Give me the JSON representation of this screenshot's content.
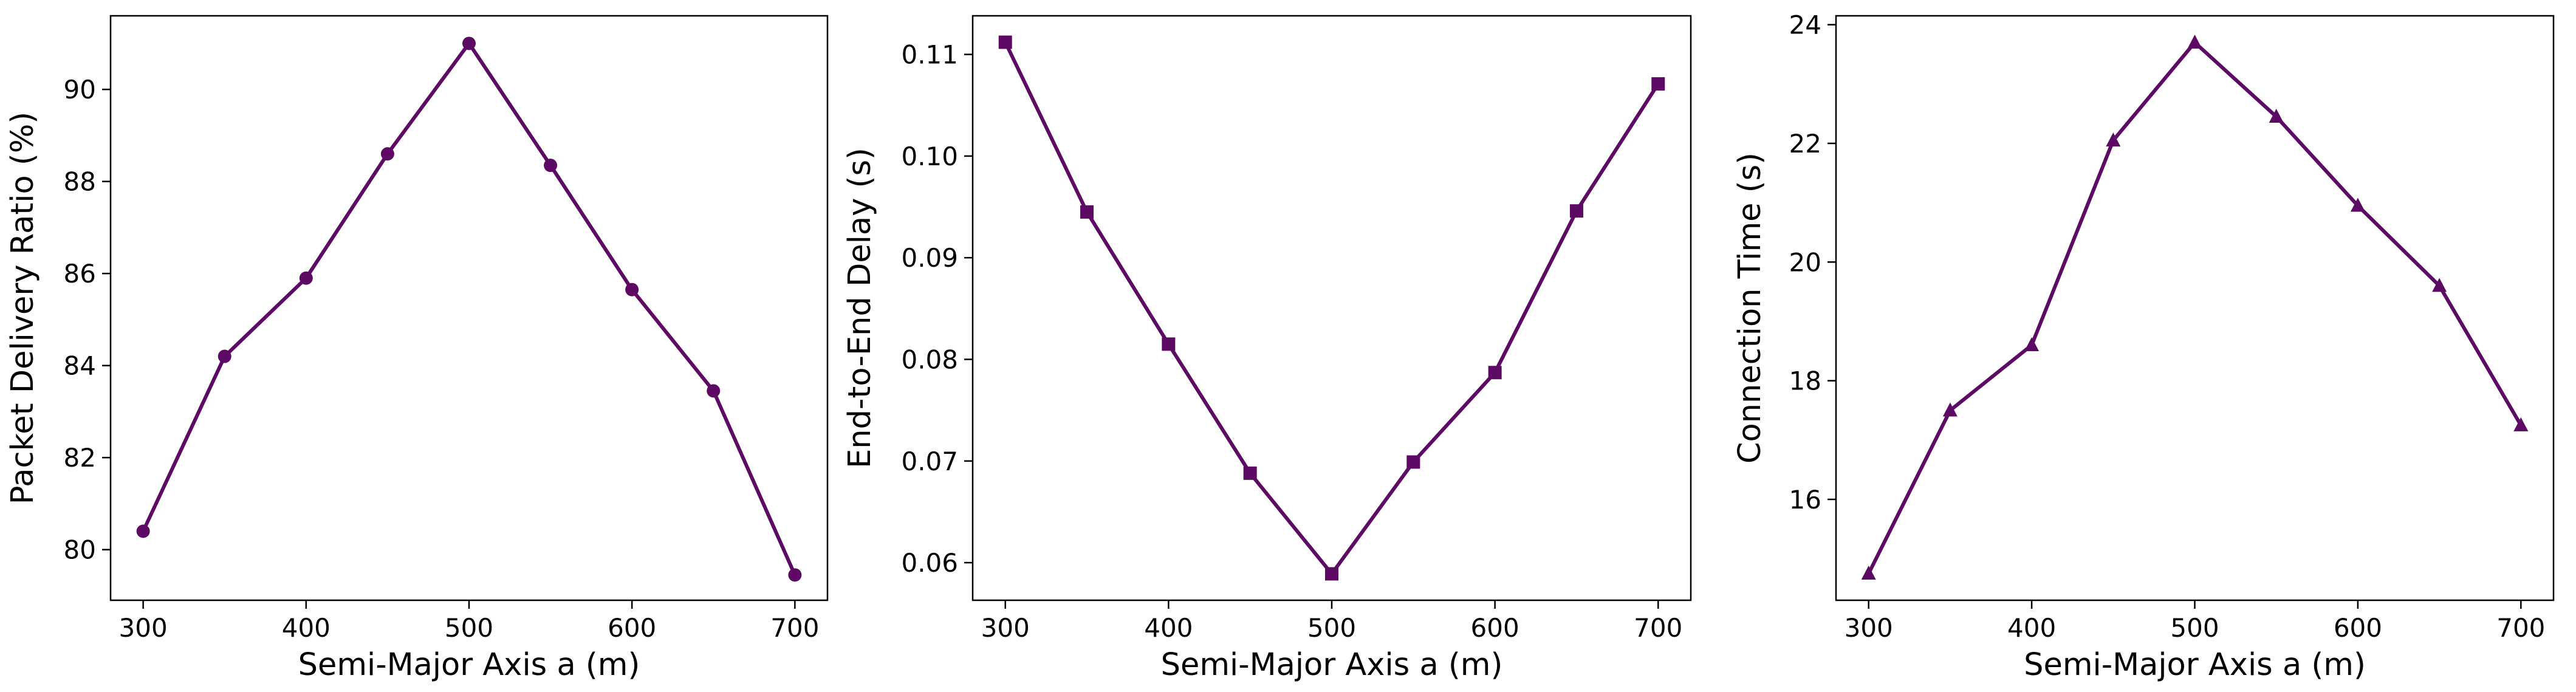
{
  "chart_data": [
    {
      "type": "line",
      "title": "",
      "xlabel": "Semi-Major Axis a (m)",
      "ylabel": "Packet Delivery Ratio (%)",
      "x": [
        300,
        350,
        400,
        450,
        500,
        550,
        600,
        650,
        700
      ],
      "series": [
        {
          "values": [
            80.4,
            84.2,
            85.9,
            88.6,
            91.0,
            88.35,
            85.65,
            83.45,
            79.45
          ],
          "color": "#5c0a63",
          "marker": "circle"
        }
      ],
      "xlim": [
        280,
        720
      ],
      "ylim": [
        78.9,
        91.6
      ],
      "xticks": [
        "300",
        "400",
        "500",
        "600",
        "700"
      ],
      "yticks": [
        "80",
        "82",
        "84",
        "86",
        "88",
        "90"
      ],
      "grid": false
    },
    {
      "type": "line",
      "title": "",
      "xlabel": "Semi-Major Axis a (m)",
      "ylabel": "End-to-End Delay (s)",
      "x": [
        300,
        350,
        400,
        450,
        500,
        550,
        600,
        650,
        700
      ],
      "series": [
        {
          "values": [
            0.1112,
            0.0945,
            0.0815,
            0.0688,
            0.0589,
            0.0699,
            0.0787,
            0.0946,
            0.1071
          ],
          "color": "#5c0a63",
          "marker": "square"
        }
      ],
      "xlim": [
        280,
        720
      ],
      "ylim": [
        0.0563,
        0.1138
      ],
      "xticks": [
        "300",
        "400",
        "500",
        "600",
        "700"
      ],
      "yticks": [
        "0.06",
        "0.07",
        "0.08",
        "0.09",
        "0.10",
        "0.11"
      ],
      "grid": false
    },
    {
      "type": "line",
      "title": "",
      "xlabel": "Semi-Major Axis a (m)",
      "ylabel": "Connection Time (s)",
      "x": [
        300,
        350,
        400,
        450,
        500,
        550,
        600,
        650,
        700
      ],
      "series": [
        {
          "values": [
            14.75,
            17.5,
            18.6,
            22.05,
            23.7,
            22.45,
            20.95,
            19.6,
            17.25
          ],
          "color": "#5c0a63",
          "marker": "triangle"
        }
      ],
      "xlim": [
        280,
        720
      ],
      "ylim": [
        14.3,
        24.15
      ],
      "xticks": [
        "300",
        "400",
        "500",
        "600",
        "700"
      ],
      "yticks": [
        "16",
        "18",
        "20",
        "22",
        "24"
      ],
      "grid": false
    }
  ]
}
